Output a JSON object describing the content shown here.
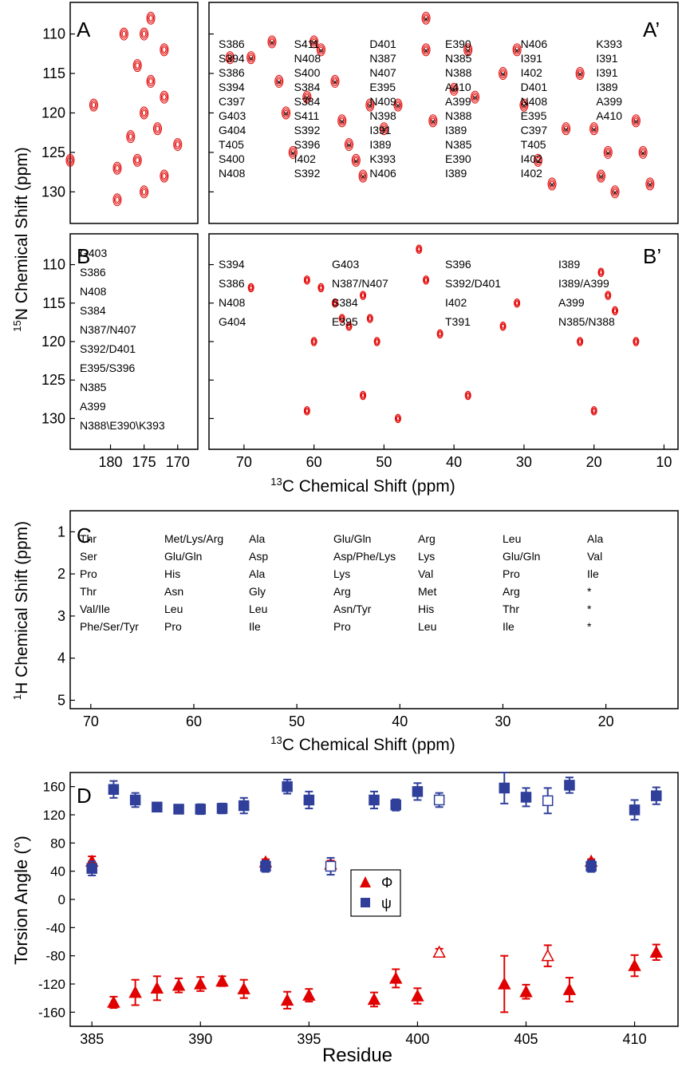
{
  "colors": {
    "red": "#e00000",
    "blue": "#2f3f9a",
    "black": "#000000"
  },
  "panel_letters": {
    "A": "A",
    "A2": "A’",
    "B": "B",
    "B2": "B’",
    "C": "C",
    "D": "D"
  },
  "axes": {
    "n15_label": "N Chemical Shift (ppm)",
    "n15_sup": "15",
    "c13_label": "C Chemical Shift (ppm)",
    "c13_sup": "13",
    "h1_label": "H Chemical Shift (ppm)",
    "h1_sup": "1",
    "torsion_label": "Torsion Angle (°)",
    "residue_label": "Residue"
  },
  "chart_data": [
    {
      "panel": "A",
      "type": "scatter",
      "xlim": [
        186,
        167
      ],
      "ylim": [
        106,
        134
      ],
      "xticks": [],
      "yticks": [
        110,
        115,
        120,
        125,
        130
      ],
      "contours": [
        [
          182.5,
          119
        ],
        [
          186,
          126
        ],
        [
          179,
          127
        ],
        [
          179,
          131
        ],
        [
          176,
          114
        ],
        [
          174,
          116
        ],
        [
          175,
          120
        ],
        [
          173,
          122
        ],
        [
          176,
          126
        ],
        [
          172,
          128
        ],
        [
          175,
          130
        ],
        [
          178,
          110
        ],
        [
          174,
          108
        ],
        [
          172,
          118
        ],
        [
          170,
          124
        ],
        [
          177,
          123
        ],
        [
          175,
          110
        ],
        [
          172,
          112
        ]
      ],
      "annotations": []
    },
    {
      "panel": "A'",
      "type": "scatter",
      "xlim": [
        75,
        8
      ],
      "ylim": [
        106,
        134
      ],
      "xticks": [],
      "yticks": [
        110,
        115,
        120,
        125,
        130
      ],
      "peaks": [
        [
          72,
          113
        ],
        [
          69,
          113
        ],
        [
          66,
          111
        ],
        [
          65,
          116
        ],
        [
          64,
          120
        ],
        [
          63,
          125
        ],
        [
          61,
          118
        ],
        [
          60,
          111
        ],
        [
          59,
          112
        ],
        [
          57,
          116
        ],
        [
          56,
          121
        ],
        [
          55,
          124
        ],
        [
          54,
          126
        ],
        [
          53,
          128
        ],
        [
          52,
          119
        ],
        [
          50,
          122
        ],
        [
          48,
          119
        ],
        [
          44,
          108
        ],
        [
          44,
          112
        ],
        [
          43,
          121
        ],
        [
          40,
          117
        ],
        [
          38,
          112
        ],
        [
          37,
          118
        ],
        [
          33,
          115
        ],
        [
          31,
          112
        ],
        [
          30,
          119
        ],
        [
          28,
          126
        ],
        [
          26,
          129
        ],
        [
          24,
          122
        ],
        [
          22,
          115
        ],
        [
          20,
          122
        ],
        [
          19,
          128
        ],
        [
          18,
          125
        ],
        [
          17,
          130
        ],
        [
          14,
          121
        ],
        [
          13,
          125
        ],
        [
          12,
          129
        ]
      ],
      "labels": [
        "S386",
        "S394",
        "S386",
        "S394",
        "C397",
        "G403",
        "G404",
        "T405",
        "S400",
        "N408",
        "S411",
        "N408",
        "S400",
        "S384",
        "S384",
        "S411",
        "S392",
        "S396",
        "I402",
        "S392",
        "D401",
        "N387",
        "N407",
        "E395",
        "N409",
        "N398",
        "I391",
        "I389",
        "K393",
        "N406",
        "E390",
        "N385",
        "N388",
        "A410",
        "A399",
        "N388",
        "I389",
        "N385",
        "E390",
        "I389",
        "N406",
        "I391",
        "I402",
        "D401",
        "N408",
        "E395",
        "C397",
        "T405",
        "I402",
        "I402",
        "K393",
        "I391",
        "I391",
        "I389",
        "A399",
        "A410"
      ]
    },
    {
      "panel": "B",
      "type": "scatter",
      "xlim": [
        186,
        167
      ],
      "ylim": [
        106,
        134
      ],
      "xticks": [
        180,
        175,
        170
      ],
      "yticks": [
        110,
        115,
        120,
        125,
        130
      ],
      "labels": [
        "G403",
        "S386",
        "N408",
        "S384",
        "N387/N407",
        "S392/D401",
        "E395/S396",
        "N385",
        "A399",
        "N388\\E390\\K393"
      ]
    },
    {
      "panel": "B'",
      "type": "scatter",
      "xlim": [
        75,
        8
      ],
      "ylim": [
        106,
        134
      ],
      "xticks": [
        70,
        60,
        50,
        40,
        30,
        20,
        10
      ],
      "yticks": [
        110,
        115,
        120,
        125,
        130
      ],
      "peaks": [
        [
          69,
          113
        ],
        [
          61,
          112
        ],
        [
          59,
          113
        ],
        [
          57,
          115
        ],
        [
          56,
          117
        ],
        [
          55,
          118
        ],
        [
          53,
          114
        ],
        [
          52,
          117
        ],
        [
          51,
          120
        ],
        [
          45,
          108
        ],
        [
          44,
          112
        ],
        [
          42,
          119
        ],
        [
          33,
          118
        ],
        [
          31,
          115
        ],
        [
          22,
          120
        ],
        [
          19,
          111
        ],
        [
          18,
          114
        ],
        [
          17,
          116
        ],
        [
          14,
          120
        ],
        [
          60,
          120
        ],
        [
          61,
          129
        ],
        [
          53,
          127
        ],
        [
          48,
          130
        ],
        [
          20,
          129
        ],
        [
          38,
          127
        ]
      ],
      "labels": [
        "S394",
        "S386",
        "N408",
        "G404",
        "G403",
        "N387/N407",
        "S384",
        "E395",
        "S396",
        "S392/D401",
        "I402",
        "T391",
        "I389",
        "I389/A399",
        "A399",
        "N385/N388"
      ]
    },
    {
      "panel": "C",
      "type": "scatter",
      "xlim": [
        72,
        13
      ],
      "ylim": [
        0.5,
        5.2
      ],
      "xticks": [
        70,
        60,
        50,
        40,
        30,
        20
      ],
      "yticks": [
        1,
        2,
        3,
        4,
        5
      ],
      "labels": [
        "Thr",
        "Ser",
        "Pro",
        "Thr",
        "Val/Ile",
        "Phe/Ser/Tyr",
        "Met/Lys/Arg",
        "Glu/Gln",
        "His",
        "Asn",
        "Leu",
        "Pro",
        "Ala",
        "Asp",
        "Ala",
        "Gly",
        "Leu",
        "Ile",
        "Glu/Gln",
        "Asp/Phe/Lys",
        "Lys",
        "Arg",
        "Asn/Tyr",
        "Pro",
        "Arg",
        "Lys",
        "Val",
        "Met",
        "His",
        "Leu",
        "Leu",
        "Glu/Gln",
        "Pro",
        "Arg",
        "Thr",
        "Ile",
        "Ala",
        "Val",
        "Ile",
        "*",
        "*",
        "*"
      ]
    },
    {
      "panel": "D",
      "type": "scatter",
      "xlim": [
        384,
        412
      ],
      "ylim": [
        -180,
        180
      ],
      "xticks": [
        385,
        390,
        395,
        400,
        405,
        410
      ],
      "yticks": [
        -160,
        -120,
        -80,
        -40,
        0,
        40,
        80,
        120,
        160
      ],
      "xlabel": "Residue",
      "ylabel": "Torsion Angle (°)",
      "legend": [
        "Φ",
        "ψ"
      ],
      "series": [
        {
          "name": "Φ",
          "marker": "triangle",
          "x": [
            385,
            386,
            387,
            388,
            389,
            390,
            391,
            392,
            393,
            394,
            395,
            396,
            398,
            399,
            400,
            401,
            404,
            405,
            406,
            407,
            408,
            410,
            411
          ],
          "y": [
            54,
            -146,
            -132,
            -126,
            -122,
            -120,
            -116,
            -127,
            53,
            -143,
            -136,
            50,
            -142,
            -112,
            -137,
            -75,
            -120,
            -131,
            -80,
            -128,
            54,
            -94,
            -75
          ],
          "err": [
            7,
            8,
            18,
            17,
            10,
            10,
            7,
            13,
            4,
            12,
            9,
            5,
            10,
            13,
            11,
            5,
            40,
            10,
            15,
            17,
            3,
            15,
            11
          ],
          "open": [
            false,
            false,
            false,
            false,
            false,
            false,
            false,
            false,
            false,
            false,
            false,
            true,
            false,
            false,
            false,
            true,
            false,
            false,
            true,
            false,
            false,
            false,
            false
          ]
        },
        {
          "name": "ψ",
          "marker": "square",
          "x": [
            385,
            386,
            387,
            388,
            389,
            390,
            391,
            392,
            393,
            394,
            395,
            396,
            398,
            399,
            400,
            401,
            404,
            405,
            406,
            407,
            408,
            410,
            411
          ],
          "y": [
            44,
            156,
            141,
            131,
            128,
            128,
            129,
            133,
            47,
            160,
            141,
            47,
            141,
            134,
            153,
            141,
            158,
            145,
            140,
            162,
            47,
            127,
            147
          ],
          "err": [
            10,
            12,
            10,
            6,
            5,
            7,
            7,
            11,
            8,
            10,
            12,
            12,
            12,
            8,
            12,
            10,
            22,
            13,
            18,
            11,
            8,
            14,
            12
          ],
          "open": [
            false,
            false,
            false,
            false,
            false,
            false,
            false,
            false,
            false,
            false,
            false,
            true,
            false,
            false,
            false,
            true,
            false,
            false,
            true,
            false,
            false,
            false,
            false
          ]
        }
      ]
    }
  ]
}
